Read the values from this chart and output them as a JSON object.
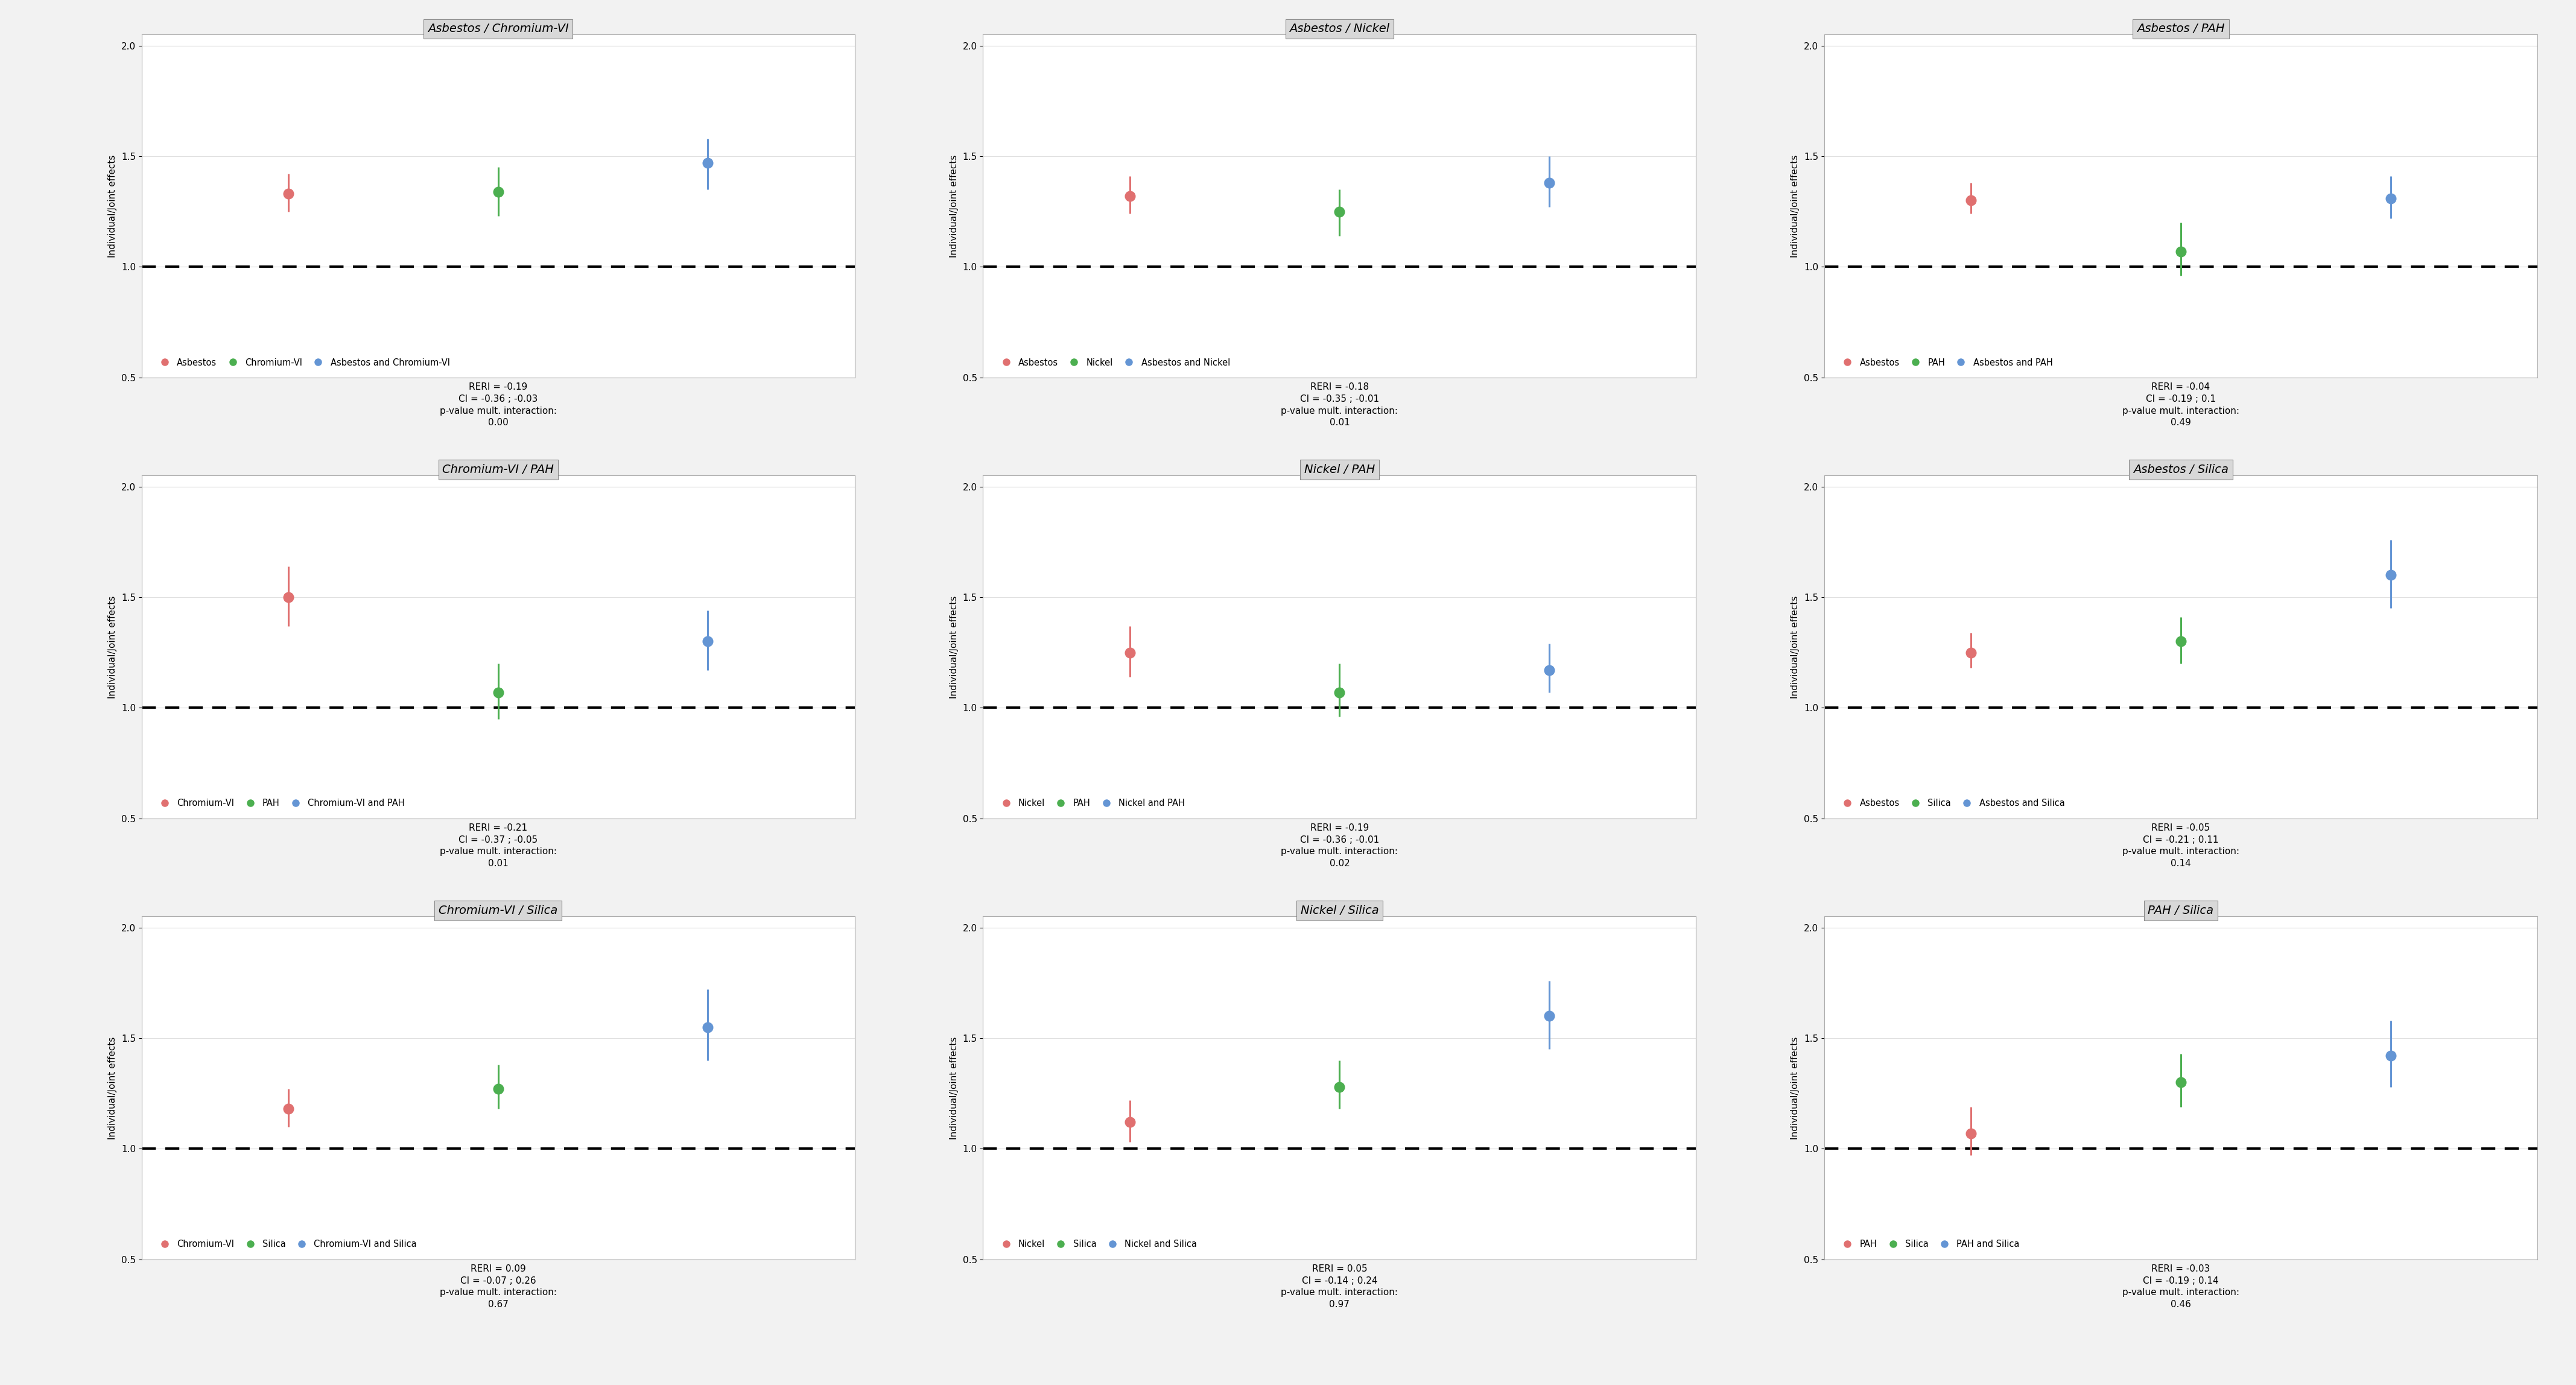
{
  "panels": [
    {
      "title": "Asbestos / Chromium-VI",
      "labels": [
        "Asbestos",
        "Chromium-VI",
        "Asbestos and Chromium-VI"
      ],
      "colors": [
        "#E07070",
        "#4CAF50",
        "#6495D4"
      ],
      "x_positions": [
        1,
        2,
        3
      ],
      "values": [
        1.33,
        1.34,
        1.47
      ],
      "ci_lower": [
        1.25,
        1.23,
        1.35
      ],
      "ci_upper": [
        1.42,
        1.45,
        1.58
      ],
      "reri": "-0.19",
      "ci_text": "-0.36 ; -0.03",
      "pvalue": "0.00"
    },
    {
      "title": "Asbestos / Nickel",
      "labels": [
        "Asbestos",
        "Nickel",
        "Asbestos and Nickel"
      ],
      "colors": [
        "#E07070",
        "#4CAF50",
        "#6495D4"
      ],
      "x_positions": [
        1,
        2,
        3
      ],
      "values": [
        1.32,
        1.25,
        1.38
      ],
      "ci_lower": [
        1.24,
        1.14,
        1.27
      ],
      "ci_upper": [
        1.41,
        1.35,
        1.5
      ],
      "reri": "-0.18",
      "ci_text": "-0.35 ; -0.01",
      "pvalue": "0.01"
    },
    {
      "title": "Asbestos / PAH",
      "labels": [
        "Asbestos",
        "PAH",
        "Asbestos and PAH"
      ],
      "colors": [
        "#E07070",
        "#4CAF50",
        "#6495D4"
      ],
      "x_positions": [
        1,
        2,
        3
      ],
      "values": [
        1.3,
        1.07,
        1.31
      ],
      "ci_lower": [
        1.24,
        0.96,
        1.22
      ],
      "ci_upper": [
        1.38,
        1.2,
        1.41
      ],
      "reri": "-0.04",
      "ci_text": "-0.19 ; 0.1",
      "pvalue": "0.49"
    },
    {
      "title": "Chromium-VI / PAH",
      "labels": [
        "Chromium-VI",
        "PAH",
        "Chromium-VI and PAH"
      ],
      "colors": [
        "#E07070",
        "#4CAF50",
        "#6495D4"
      ],
      "x_positions": [
        1,
        2,
        3
      ],
      "values": [
        1.5,
        1.07,
        1.3
      ],
      "ci_lower": [
        1.37,
        0.95,
        1.17
      ],
      "ci_upper": [
        1.64,
        1.2,
        1.44
      ],
      "reri": "-0.21",
      "ci_text": "-0.37 ; -0.05",
      "pvalue": "0.01"
    },
    {
      "title": "Nickel / PAH",
      "labels": [
        "Nickel",
        "PAH",
        "Nickel and PAH"
      ],
      "colors": [
        "#E07070",
        "#4CAF50",
        "#6495D4"
      ],
      "x_positions": [
        1,
        2,
        3
      ],
      "values": [
        1.25,
        1.07,
        1.17
      ],
      "ci_lower": [
        1.14,
        0.96,
        1.07
      ],
      "ci_upper": [
        1.37,
        1.2,
        1.29
      ],
      "reri": "-0.19",
      "ci_text": "-0.36 ; -0.01",
      "pvalue": "0.02"
    },
    {
      "title": "Asbestos / Silica",
      "labels": [
        "Asbestos",
        "Silica",
        "Asbestos and Silica"
      ],
      "colors": [
        "#E07070",
        "#4CAF50",
        "#6495D4"
      ],
      "x_positions": [
        1,
        2,
        3
      ],
      "values": [
        1.25,
        1.3,
        1.6
      ],
      "ci_lower": [
        1.18,
        1.2,
        1.45
      ],
      "ci_upper": [
        1.34,
        1.41,
        1.76
      ],
      "reri": "-0.05",
      "ci_text": "-0.21 ; 0.11",
      "pvalue": "0.14"
    },
    {
      "title": "Chromium-VI / Silica",
      "labels": [
        "Chromium-VI",
        "Silica",
        "Chromium-VI and Silica"
      ],
      "colors": [
        "#E07070",
        "#4CAF50",
        "#6495D4"
      ],
      "x_positions": [
        1,
        2,
        3
      ],
      "values": [
        1.18,
        1.27,
        1.55
      ],
      "ci_lower": [
        1.1,
        1.18,
        1.4
      ],
      "ci_upper": [
        1.27,
        1.38,
        1.72
      ],
      "reri": "0.09",
      "ci_text": "-0.07 ; 0.26",
      "pvalue": "0.67"
    },
    {
      "title": "Nickel / Silica",
      "labels": [
        "Nickel",
        "Silica",
        "Nickel and Silica"
      ],
      "colors": [
        "#E07070",
        "#4CAF50",
        "#6495D4"
      ],
      "x_positions": [
        1,
        2,
        3
      ],
      "values": [
        1.12,
        1.28,
        1.6
      ],
      "ci_lower": [
        1.03,
        1.18,
        1.45
      ],
      "ci_upper": [
        1.22,
        1.4,
        1.76
      ],
      "reri": "0.05",
      "ci_text": "-0.14 ; 0.24",
      "pvalue": "0.97"
    },
    {
      "title": "PAH / Silica",
      "labels": [
        "PAH",
        "Silica",
        "PAH and Silica"
      ],
      "colors": [
        "#E07070",
        "#4CAF50",
        "#6495D4"
      ],
      "x_positions": [
        1,
        2,
        3
      ],
      "values": [
        1.07,
        1.3,
        1.42
      ],
      "ci_lower": [
        0.97,
        1.19,
        1.28
      ],
      "ci_upper": [
        1.19,
        1.43,
        1.58
      ],
      "reri": "-0.03",
      "ci_text": "-0.19 ; 0.14",
      "pvalue": "0.46"
    }
  ],
  "ylabel": "Individual/Joint effects",
  "ylim": [
    0.5,
    2.05
  ],
  "yticks": [
    0.5,
    1.0,
    1.5,
    2.0
  ],
  "dashed_line": 1.0,
  "figure_bg": "#f2f2f2",
  "plot_bg": "#ffffff",
  "title_fontsize": 14,
  "label_fontsize": 11,
  "tick_fontsize": 11,
  "annotation_fontsize": 11,
  "legend_fontsize": 10.5
}
